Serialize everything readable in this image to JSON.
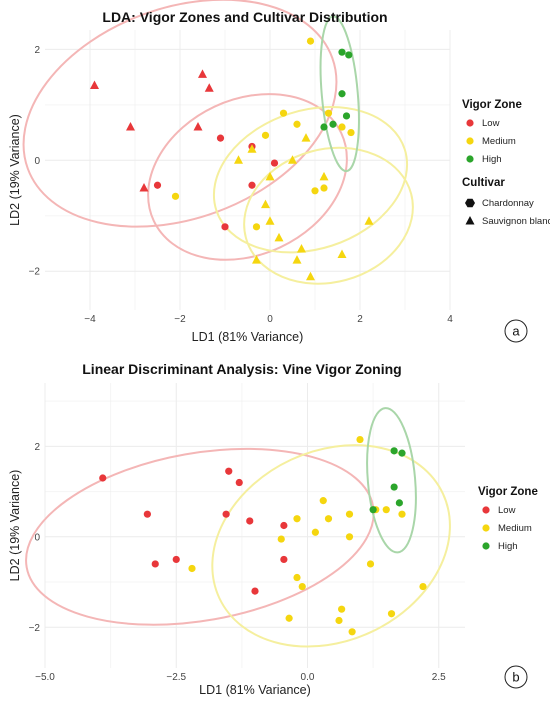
{
  "colors": {
    "Low": "#e8373a",
    "Medium": "#f5d60f",
    "High": "#2ba52b"
  },
  "ellipse_colors": {
    "Low": "#f4b6b6",
    "Medium": "#f5ef9e",
    "High": "#a9d6a9"
  },
  "chart_data": [
    {
      "type": "scatter",
      "title": "LDA: Vigor Zones and Cultivar Distribution",
      "xlabel": "LD1 (81% Variance)",
      "ylabel": "LD2 (19% Variance)",
      "xlim": [
        -5.0,
        4.0
      ],
      "ylim": [
        -2.7,
        2.35
      ],
      "xticks": [
        -4,
        -2,
        0,
        2,
        4
      ],
      "xtick_labels": [
        "−4",
        "−2",
        "0",
        "2",
        "4"
      ],
      "yticks": [
        -2,
        0,
        2
      ],
      "ytick_labels": [
        "−2",
        "0",
        "2"
      ],
      "grid": true,
      "legend_placement": "right",
      "color_legend_title": "Vigor Zone",
      "color_legend": [
        "Low",
        "Medium",
        "High"
      ],
      "shape_legend_title": "Cultivar",
      "shape_legend": [
        {
          "label": "Chardonnay",
          "shape": "circle"
        },
        {
          "label": "Sauvignon blanc",
          "shape": "triangle"
        }
      ],
      "panel_tag": "a",
      "ellipses": [
        {
          "zone": "Low",
          "cx": -2.0,
          "cy": 0.85,
          "rx": 3.6,
          "ry": 1.9,
          "angle": 20
        },
        {
          "zone": "Low",
          "cx": -0.5,
          "cy": -0.3,
          "rx": 2.3,
          "ry": 1.4,
          "angle": 25
        },
        {
          "zone": "Medium",
          "cx": 0.9,
          "cy": -0.35,
          "rx": 2.2,
          "ry": 1.25,
          "angle": 18
        },
        {
          "zone": "Medium",
          "cx": 1.3,
          "cy": -1.0,
          "rx": 1.9,
          "ry": 1.2,
          "angle": 15
        },
        {
          "zone": "High",
          "cx": 1.55,
          "cy": 1.2,
          "rx": 0.4,
          "ry": 1.4,
          "angle": 5
        }
      ],
      "series": [
        {
          "zone": "Low",
          "shape": "circle",
          "points": [
            [
              -2.5,
              -0.45
            ],
            [
              -1.1,
              0.4
            ],
            [
              -0.4,
              0.25
            ],
            [
              -0.4,
              -0.45
            ],
            [
              -1.0,
              -1.2
            ],
            [
              0.1,
              -0.05
            ]
          ]
        },
        {
          "zone": "Low",
          "shape": "triangle",
          "points": [
            [
              -3.9,
              1.35
            ],
            [
              -3.1,
              0.6
            ],
            [
              -2.8,
              -0.5
            ],
            [
              -1.5,
              1.55
            ],
            [
              -1.35,
              1.3
            ],
            [
              -1.6,
              0.6
            ]
          ]
        },
        {
          "zone": "Medium",
          "shape": "circle",
          "points": [
            [
              -2.1,
              -0.65
            ],
            [
              0.3,
              0.85
            ],
            [
              -0.1,
              0.45
            ],
            [
              0.6,
              0.65
            ],
            [
              0.9,
              2.15
            ],
            [
              1.2,
              -0.5
            ],
            [
              1.3,
              0.85
            ],
            [
              1.6,
              0.6
            ],
            [
              1.8,
              0.5
            ],
            [
              -0.3,
              -1.2
            ],
            [
              1.0,
              -0.55
            ]
          ]
        },
        {
          "zone": "Medium",
          "shape": "triangle",
          "points": [
            [
              -0.7,
              0.0
            ],
            [
              -0.4,
              0.2
            ],
            [
              0.0,
              -0.3
            ],
            [
              0.5,
              0.0
            ],
            [
              0.8,
              0.4
            ],
            [
              1.2,
              -0.3
            ],
            [
              -0.1,
              -0.8
            ],
            [
              0.0,
              -1.1
            ],
            [
              0.2,
              -1.4
            ],
            [
              -0.3,
              -1.8
            ],
            [
              0.6,
              -1.8
            ],
            [
              0.7,
              -1.6
            ],
            [
              0.9,
              -2.1
            ],
            [
              1.6,
              -1.7
            ],
            [
              2.2,
              -1.1
            ]
          ]
        },
        {
          "zone": "High",
          "shape": "circle",
          "points": [
            [
              1.2,
              0.6
            ],
            [
              1.4,
              0.65
            ],
            [
              1.6,
              1.95
            ],
            [
              1.75,
              1.9
            ],
            [
              1.6,
              1.2
            ],
            [
              1.7,
              0.8
            ]
          ]
        }
      ]
    },
    {
      "type": "scatter",
      "title": "Linear Discriminant Analysis: Vine Vigor Zoning",
      "xlabel": "LD1 (81% Variance)",
      "ylabel": "LD2 (19% Variance)",
      "xlim": [
        -5.0,
        3.0
      ],
      "ylim": [
        -2.9,
        3.4
      ],
      "xticks": [
        -5.0,
        -2.5,
        0.0,
        2.5
      ],
      "xtick_labels": [
        "−5.0",
        "−2.5",
        "0.0",
        "2.5"
      ],
      "yticks": [
        -2,
        0,
        2
      ],
      "ytick_labels": [
        "−2",
        "0",
        "2"
      ],
      "grid": true,
      "legend_placement": "right",
      "color_legend_title": "Vigor Zone",
      "color_legend": [
        "Low",
        "Medium",
        "High"
      ],
      "panel_tag": "b",
      "ellipses": [
        {
          "zone": "Low",
          "cx": -2.05,
          "cy": 0.0,
          "rx": 3.35,
          "ry": 1.85,
          "angle": 10
        },
        {
          "zone": "Medium",
          "cx": 0.45,
          "cy": -0.2,
          "rx": 2.35,
          "ry": 2.1,
          "angle": 25
        },
        {
          "zone": "High",
          "cx": 1.6,
          "cy": 1.25,
          "rx": 0.45,
          "ry": 1.6,
          "angle": 5
        }
      ],
      "series": [
        {
          "zone": "Low",
          "shape": "circle",
          "points": [
            [
              -3.9,
              1.3
            ],
            [
              -3.05,
              0.5
            ],
            [
              -2.9,
              -0.6
            ],
            [
              -2.5,
              -0.5
            ],
            [
              -1.5,
              1.45
            ],
            [
              -1.3,
              1.2
            ],
            [
              -1.55,
              0.5
            ],
            [
              -1.1,
              0.35
            ],
            [
              -0.45,
              0.25
            ],
            [
              -0.45,
              -0.5
            ],
            [
              -1.0,
              -1.2
            ]
          ]
        },
        {
          "zone": "Medium",
          "shape": "circle",
          "points": [
            [
              -2.2,
              -0.7
            ],
            [
              -0.5,
              -0.05
            ],
            [
              -0.2,
              0.4
            ],
            [
              0.3,
              0.8
            ],
            [
              0.4,
              0.4
            ],
            [
              0.15,
              0.1
            ],
            [
              0.8,
              0.5
            ],
            [
              0.8,
              0.0
            ],
            [
              1.0,
              2.15
            ],
            [
              1.3,
              0.6
            ],
            [
              1.5,
              0.6
            ],
            [
              1.8,
              0.5
            ],
            [
              -0.2,
              -0.9
            ],
            [
              -0.1,
              -1.1
            ],
            [
              1.2,
              -0.6
            ],
            [
              -0.35,
              -1.8
            ],
            [
              0.6,
              -1.85
            ],
            [
              0.65,
              -1.6
            ],
            [
              0.85,
              -2.1
            ],
            [
              1.6,
              -1.7
            ],
            [
              2.2,
              -1.1
            ]
          ]
        },
        {
          "zone": "High",
          "shape": "circle",
          "points": [
            [
              1.25,
              0.6
            ],
            [
              1.65,
              1.9
            ],
            [
              1.8,
              1.85
            ],
            [
              1.65,
              1.1
            ],
            [
              1.75,
              0.75
            ]
          ]
        }
      ]
    }
  ]
}
